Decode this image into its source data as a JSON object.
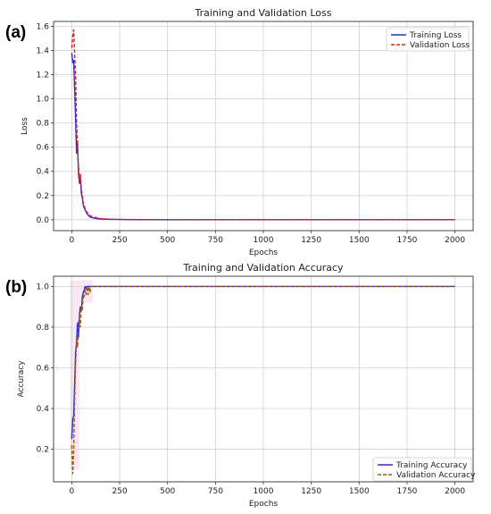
{
  "panel_labels": [
    "(a)",
    "(b)"
  ],
  "colors": {
    "training": "#2b2bd6",
    "val_loss": "#e02020",
    "val_acc": "#9a5b12",
    "grid": "#d0d0d0",
    "shade": "#f2c9ef"
  },
  "chart_data": [
    {
      "type": "line",
      "title": "Training and Validation Loss",
      "xlabel": "Epochs",
      "ylabel": "Loss",
      "xlim": [
        -95,
        2095
      ],
      "ylim": [
        -0.09,
        1.64
      ],
      "xticks": [
        0,
        250,
        500,
        750,
        1000,
        1250,
        1500,
        1750,
        2000
      ],
      "yticks": [
        0.0,
        0.2,
        0.4,
        0.6,
        0.8,
        1.0,
        1.2,
        1.4,
        1.6
      ],
      "ytick_labels": [
        "0.0",
        "0.2",
        "0.4",
        "0.6",
        "0.8",
        "1.0",
        "1.2",
        "1.4",
        "1.6"
      ],
      "grid": true,
      "legend": "top-right",
      "series": [
        {
          "name": "Training Loss",
          "style": "solid",
          "x": [
            0,
            5,
            10,
            15,
            20,
            25,
            30,
            35,
            40,
            45,
            50,
            55,
            60,
            65,
            70,
            80,
            90,
            100,
            120,
            150,
            200,
            300,
            500,
            1000,
            1500,
            2000
          ],
          "y": [
            1.38,
            1.3,
            1.32,
            1.08,
            0.82,
            0.55,
            0.65,
            0.38,
            0.3,
            0.35,
            0.22,
            0.18,
            0.12,
            0.1,
            0.08,
            0.05,
            0.03,
            0.02,
            0.012,
            0.006,
            0.003,
            0.001,
            0.0,
            0.0,
            0.0,
            0.0
          ]
        },
        {
          "name": "Validation Loss",
          "style": "dashed",
          "x": [
            0,
            5,
            10,
            15,
            20,
            25,
            30,
            35,
            40,
            45,
            50,
            55,
            60,
            65,
            70,
            80,
            90,
            100,
            120,
            150,
            200,
            300,
            500,
            1000,
            1500,
            2000
          ],
          "y": [
            1.42,
            1.52,
            1.57,
            1.38,
            1.18,
            0.8,
            0.6,
            0.45,
            0.32,
            0.38,
            0.26,
            0.2,
            0.14,
            0.12,
            0.09,
            0.06,
            0.04,
            0.03,
            0.02,
            0.01,
            0.005,
            0.002,
            0.001,
            0.0,
            0.0,
            0.0
          ]
        }
      ]
    },
    {
      "type": "line",
      "title": "Training and Validation Accuracy",
      "xlabel": "Epochs",
      "ylabel": "Accuracy",
      "xlim": [
        -95,
        2095
      ],
      "ylim": [
        0.04,
        1.05
      ],
      "xticks": [
        0,
        250,
        500,
        750,
        1000,
        1250,
        1500,
        1750,
        2000
      ],
      "yticks": [
        0.2,
        0.4,
        0.6,
        0.8,
        1.0
      ],
      "ytick_labels": [
        "0.2",
        "0.4",
        "0.6",
        "0.8",
        "1.0"
      ],
      "grid": true,
      "legend": "bottom-right",
      "series": [
        {
          "name": "Training Accuracy",
          "style": "solid",
          "x": [
            0,
            5,
            10,
            15,
            20,
            25,
            30,
            35,
            40,
            45,
            50,
            55,
            60,
            65,
            70,
            75,
            80,
            90,
            100,
            150,
            500,
            1000,
            1500,
            2000
          ],
          "y": [
            0.25,
            0.35,
            0.36,
            0.52,
            0.68,
            0.72,
            0.82,
            0.75,
            0.86,
            0.9,
            0.88,
            0.95,
            0.97,
            0.98,
            1.0,
            0.99,
            1.0,
            1.0,
            1.0,
            1.0,
            1.0,
            1.0,
            1.0,
            1.0
          ]
        },
        {
          "name": "Validation Accuracy",
          "style": "dashed",
          "x": [
            0,
            5,
            10,
            15,
            20,
            25,
            30,
            35,
            40,
            45,
            50,
            55,
            60,
            65,
            70,
            75,
            80,
            85,
            90,
            95,
            100,
            150,
            500,
            1000,
            1500,
            2000
          ],
          "y": [
            0.22,
            0.08,
            0.18,
            0.45,
            0.62,
            0.75,
            0.7,
            0.82,
            0.85,
            0.8,
            0.9,
            0.88,
            0.96,
            0.95,
            0.98,
            0.96,
            1.0,
            0.96,
            1.0,
            0.97,
            1.0,
            1.0,
            1.0,
            1.0,
            1.0,
            1.0
          ]
        }
      ]
    }
  ]
}
